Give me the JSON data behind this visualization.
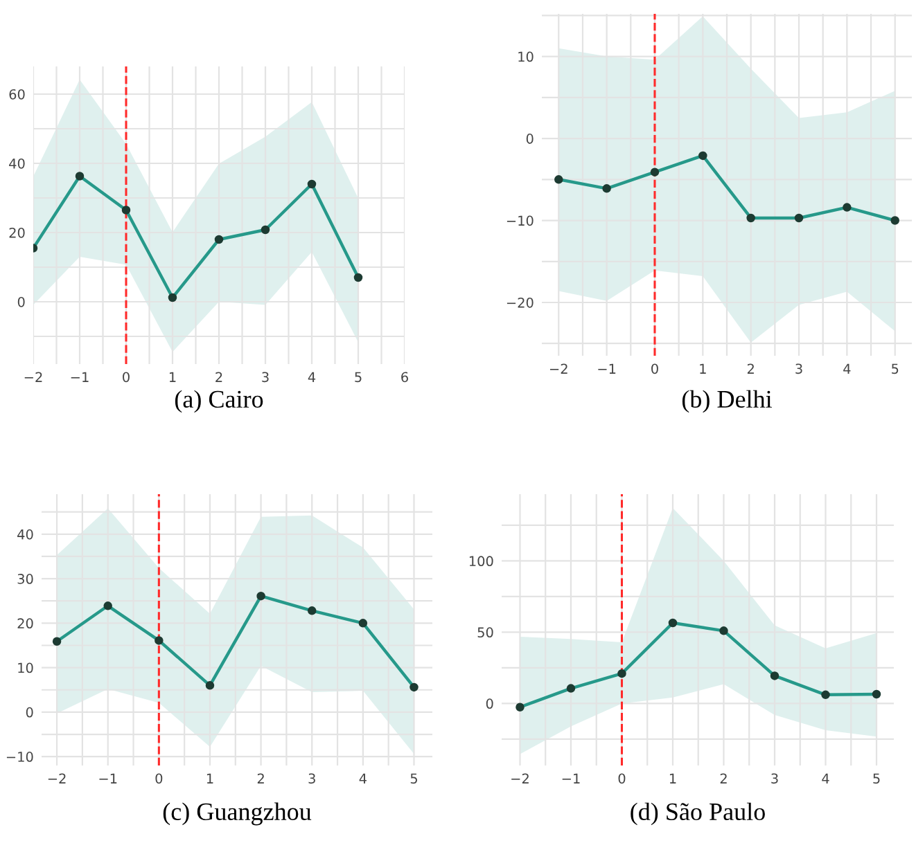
{
  "chart_data": [
    {
      "type": "line",
      "title": "(a) Cairo",
      "x": [
        -2,
        -1,
        0,
        1,
        2,
        3,
        4,
        5
      ],
      "series": [
        {
          "color": "#26998a",
          "values": [
            15.5,
            36.3,
            26.5,
            1.2,
            18,
            20.8,
            34,
            7
          ],
          "lower": [
            -0.9,
            13,
            10.7,
            -14.5,
            0,
            -0.9,
            14.4,
            -11.7
          ],
          "upper": [
            36.2,
            64.2,
            45.6,
            20.1,
            39.9,
            47.7,
            57.7,
            29.9
          ]
        }
      ],
      "xlim": [
        -2,
        6
      ],
      "xticks": [
        -2,
        {
          "value": -1.5,
          "label": null
        },
        -1,
        {
          "value": -0.5,
          "label": null
        },
        0,
        {
          "value": 0.5,
          "label": null
        },
        1,
        {
          "value": 1.5,
          "label": null
        },
        2,
        {
          "value": 2.5,
          "label": null
        },
        3,
        {
          "value": 3.5,
          "label": null
        },
        4,
        {
          "value": 4.5,
          "label": null
        },
        5,
        {
          "value": 5.5,
          "label": null
        },
        6
      ],
      "ylim": [
        -18,
        68
      ],
      "yticks": [
        {
          "value": -10,
          "label": null
        },
        0,
        {
          "value": 10,
          "label": null
        },
        20,
        {
          "value": 30,
          "label": null
        },
        40,
        {
          "value": 50,
          "label": null
        },
        60
      ],
      "ref_lines": [
        {
          "axis": "x",
          "value": 0,
          "color": "#ff2a2a",
          "line_style": "dashed"
        }
      ],
      "grid": true,
      "marker": "circle",
      "line_style": "solid",
      "legend": false
    },
    {
      "type": "line",
      "title": "(b) Delhi",
      "x": [
        -2,
        -1,
        0,
        1,
        2,
        3,
        4,
        5
      ],
      "series": [
        {
          "color": "#26998a",
          "values": [
            -5.0,
            -6.1,
            -4.1,
            -2.1,
            -9.7,
            -9.7,
            -8.4,
            -10
          ],
          "lower": [
            -18.6,
            -19.8,
            -16.1,
            -16.8,
            -24.9,
            -20.3,
            -18.7,
            -23.5
          ],
          "upper": [
            11,
            10,
            9.6,
            14.9,
            8.5,
            2.5,
            3.2,
            5.8
          ]
        }
      ],
      "xlim": [
        -2.35,
        5.35
      ],
      "xticks": [
        -2,
        {
          "value": -1.5,
          "label": null
        },
        -1,
        {
          "value": -0.5,
          "label": null
        },
        0,
        {
          "value": 0.5,
          "label": null
        },
        1,
        {
          "value": 1.5,
          "label": null
        },
        2,
        {
          "value": 2.5,
          "label": null
        },
        3,
        {
          "value": 3.5,
          "label": null
        },
        4,
        {
          "value": 4.5,
          "label": null
        },
        5
      ],
      "ylim": [
        -26.5,
        15.2
      ],
      "yticks": [
        {
          "value": -25,
          "label": null
        },
        -20,
        {
          "value": -15,
          "label": null
        },
        -10,
        {
          "value": -5,
          "label": null
        },
        0,
        {
          "value": 5,
          "label": null
        },
        10,
        {
          "value": 15,
          "label": null
        }
      ],
      "ref_lines": [
        {
          "axis": "x",
          "value": 0,
          "color": "#ff2a2a",
          "line_style": "dashed"
        }
      ],
      "grid": true,
      "marker": "circle",
      "line_style": "solid",
      "legend": false
    },
    {
      "type": "line",
      "title": "(c) Guangzhou",
      "x": [
        -2,
        -1,
        0,
        1,
        2,
        3,
        4,
        5
      ],
      "series": [
        {
          "color": "#26998a",
          "values": [
            15.9,
            23.9,
            16.1,
            6.0,
            26.1,
            22.8,
            20,
            5.6
          ],
          "lower": [
            -0.3,
            5.2,
            2.1,
            -7.8,
            10.4,
            4.5,
            4.8,
            -9.4
          ],
          "upper": [
            35.3,
            45.8,
            32.4,
            22.1,
            43.9,
            44.2,
            37,
            23.1
          ]
        }
      ],
      "xlim": [
        -2.3,
        5.36
      ],
      "xticks": [
        -2,
        {
          "value": -1.5,
          "label": null
        },
        -1,
        {
          "value": -0.5,
          "label": null
        },
        0,
        {
          "value": 0.5,
          "label": null
        },
        1,
        {
          "value": 1.5,
          "label": null
        },
        2,
        {
          "value": 2.5,
          "label": null
        },
        3,
        {
          "value": 3.5,
          "label": null
        },
        4,
        {
          "value": 4.5,
          "label": null
        },
        5
      ],
      "ylim": [
        -12,
        49
      ],
      "yticks": [
        -10,
        {
          "value": -5,
          "label": null
        },
        0,
        {
          "value": 5,
          "label": null
        },
        10,
        {
          "value": 15,
          "label": null
        },
        20,
        {
          "value": 25,
          "label": null
        },
        30,
        {
          "value": 35,
          "label": null
        },
        40,
        {
          "value": 45,
          "label": null
        }
      ],
      "ref_lines": [
        {
          "axis": "x",
          "value": 0,
          "color": "#ff2a2a",
          "line_style": "dashed"
        }
      ],
      "grid": true,
      "marker": "circle",
      "line_style": "solid",
      "legend": false
    },
    {
      "type": "line",
      "title": "(d) São Paulo",
      "x": [
        -2,
        -1,
        0,
        1,
        2,
        3,
        4,
        5
      ],
      "series": [
        {
          "color": "#26998a",
          "values": [
            -2.6,
            10.6,
            21,
            56.5,
            51,
            19.4,
            6.1,
            6.5
          ],
          "lower": [
            -35.5,
            -16.1,
            0,
            4.2,
            13.5,
            -8.1,
            -18.7,
            -23.2
          ],
          "upper": [
            46.8,
            45.2,
            42.9,
            137.1,
            100,
            54.8,
            38.7,
            49.4
          ]
        }
      ],
      "xlim": [
        -2.36,
        5.34
      ],
      "xticks": [
        -2,
        {
          "value": -1.5,
          "label": null
        },
        -1,
        {
          "value": -0.5,
          "label": null
        },
        0,
        {
          "value": 0.5,
          "label": null
        },
        1,
        {
          "value": 1.5,
          "label": null
        },
        2,
        {
          "value": 2.5,
          "label": null
        },
        3,
        {
          "value": 3.5,
          "label": null
        },
        4,
        {
          "value": 4.5,
          "label": null
        },
        5
      ],
      "ylim": [
        -43.5,
        146.8
      ],
      "yticks": [
        {
          "value": -25,
          "label": null
        },
        0,
        {
          "value": 25,
          "label": null
        },
        50,
        {
          "value": 75,
          "label": null
        },
        100,
        {
          "value": 125,
          "label": null
        }
      ],
      "ref_lines": [
        {
          "axis": "x",
          "value": 0,
          "color": "#ff2a2a",
          "line_style": "dashed"
        }
      ],
      "grid": true,
      "marker": "circle",
      "line_style": "solid",
      "legend": false
    }
  ]
}
